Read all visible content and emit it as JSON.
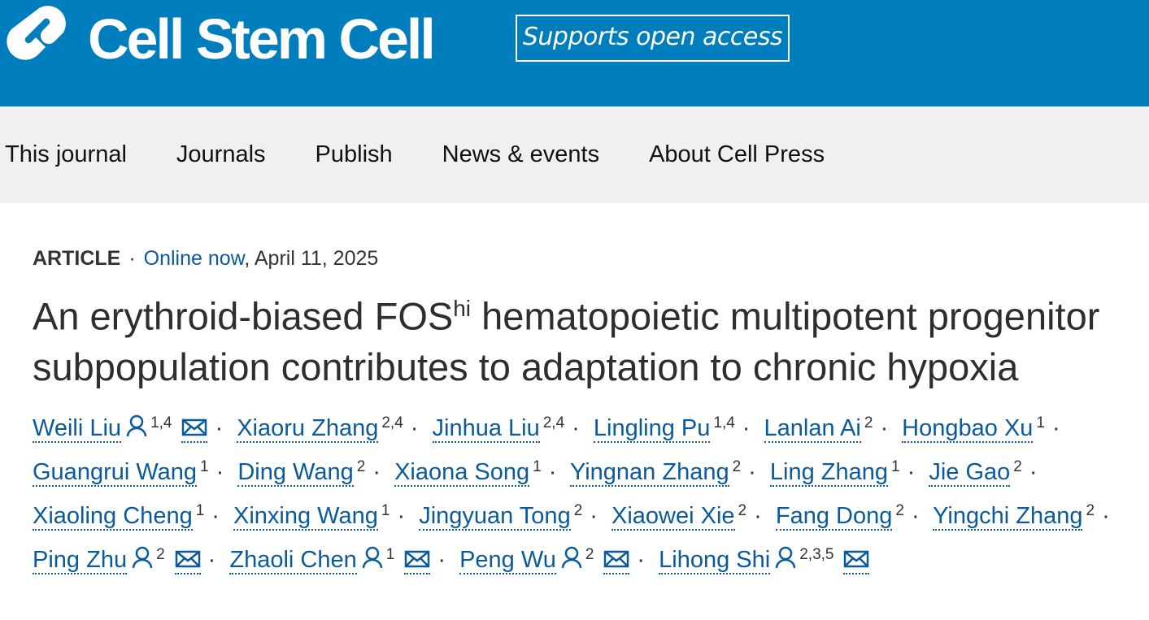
{
  "header": {
    "journal": "Cell Stem Cell",
    "badge": "Supports open access"
  },
  "nav": {
    "items": [
      "This journal",
      "Journals",
      "Publish",
      "News & events",
      "About Cell Press"
    ]
  },
  "article": {
    "type": "ARTICLE",
    "separator": "·",
    "status": "Online now",
    "date": ", April 11, 2025",
    "title": {
      "before": "An erythroid-biased FOS",
      "superscript": "hi",
      "after": " hematopoietic multipotent progenitor subpopulation contributes to adaptation to chronic hypoxia"
    },
    "authors": [
      {
        "name": "Weili Liu",
        "affiliations": "1,4",
        "corresponding": true
      },
      {
        "name": "Xiaoru Zhang",
        "affiliations": "2,4",
        "corresponding": false
      },
      {
        "name": "Jinhua Liu",
        "affiliations": "2,4",
        "corresponding": false
      },
      {
        "name": "Lingling Pu",
        "affiliations": "1,4",
        "corresponding": false
      },
      {
        "name": "Lanlan Ai",
        "affiliations": "2",
        "corresponding": false
      },
      {
        "name": "Hongbao Xu",
        "affiliations": "1",
        "corresponding": false
      },
      {
        "name": "Guangrui Wang",
        "affiliations": "1",
        "corresponding": false
      },
      {
        "name": "Ding Wang",
        "affiliations": "2",
        "corresponding": false
      },
      {
        "name": "Xiaona Song",
        "affiliations": "1",
        "corresponding": false
      },
      {
        "name": "Yingnan Zhang",
        "affiliations": "2",
        "corresponding": false
      },
      {
        "name": "Ling Zhang",
        "affiliations": "1",
        "corresponding": false
      },
      {
        "name": "Jie Gao",
        "affiliations": "2",
        "corresponding": false
      },
      {
        "name": "Xiaoling Cheng",
        "affiliations": "1",
        "corresponding": false
      },
      {
        "name": "Xinxing Wang",
        "affiliations": "1",
        "corresponding": false
      },
      {
        "name": "Jingyuan Tong",
        "affiliations": "2",
        "corresponding": false
      },
      {
        "name": "Xiaowei Xie",
        "affiliations": "2",
        "corresponding": false
      },
      {
        "name": "Fang Dong",
        "affiliations": "2",
        "corresponding": false
      },
      {
        "name": "Yingchi Zhang",
        "affiliations": "2",
        "corresponding": false
      },
      {
        "name": "Ping Zhu",
        "affiliations": "2",
        "corresponding": true
      },
      {
        "name": "Zhaoli Chen",
        "affiliations": "1",
        "corresponding": true
      },
      {
        "name": "Peng Wu",
        "affiliations": "2",
        "corresponding": true
      },
      {
        "name": "Lihong Shi",
        "affiliations": "2,3,5",
        "corresponding": true
      }
    ]
  }
}
